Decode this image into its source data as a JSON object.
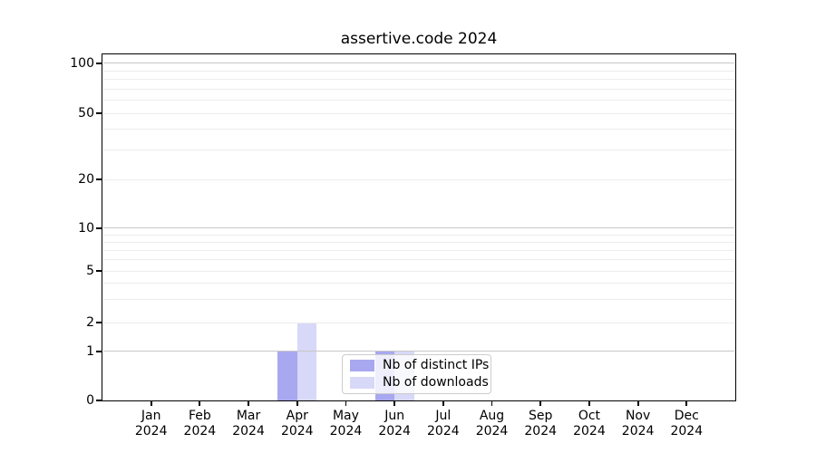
{
  "chart_data": {
    "type": "bar",
    "title": "assertive.code 2024",
    "categories": [
      "Jan",
      "Feb",
      "Mar",
      "Apr",
      "May",
      "Jun",
      "Jul",
      "Aug",
      "Sep",
      "Oct",
      "Nov",
      "Dec"
    ],
    "category_year": "2024",
    "series": [
      {
        "name": "Nb of distinct IPs",
        "color": "#a8a8f0",
        "values": [
          0,
          0,
          0,
          1,
          0,
          1,
          0,
          0,
          0,
          0,
          0,
          0
        ]
      },
      {
        "name": "Nb of downloads",
        "color": "#d8d8f8",
        "values": [
          0,
          0,
          0,
          2,
          0,
          1,
          0,
          0,
          0,
          0,
          0,
          0
        ]
      }
    ],
    "yaxis": {
      "scale": "symlog",
      "tick_values": [
        0,
        1,
        2,
        5,
        10,
        20,
        50,
        100
      ],
      "tick_labels": [
        "0",
        "1",
        "2",
        "5",
        "10",
        "20",
        "50",
        "100"
      ],
      "major_grid_values": [
        1,
        10,
        100
      ],
      "minor_grid_values": [
        2,
        3,
        4,
        5,
        6,
        7,
        8,
        9,
        20,
        30,
        40,
        50,
        60,
        70,
        80,
        90
      ],
      "ylim": [
        0,
        115
      ]
    },
    "grid": "horizontal",
    "legend_position": "inside-bottom-center",
    "colors": {
      "major_grid": "#c8c8c8",
      "minor_grid": "#ececec",
      "spine": "#000000",
      "background": "#ffffff"
    }
  }
}
